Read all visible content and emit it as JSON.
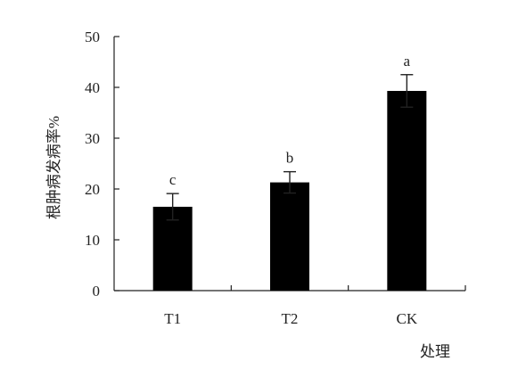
{
  "chart_data": {
    "type": "bar",
    "title": "",
    "xlabel": "处理",
    "ylabel": "根肿病发病率%",
    "categories": [
      "T1",
      "T2",
      "CK"
    ],
    "series": [
      {
        "values": [
          16.5,
          21.3,
          39.3
        ],
        "error": [
          2.6,
          2.1,
          3.2
        ],
        "significance": [
          "c",
          "b",
          "a"
        ],
        "color": "#000000"
      }
    ],
    "ylim": [
      0,
      50
    ],
    "yticks": [
      0,
      10,
      20,
      30,
      40,
      50
    ],
    "grid": false,
    "legend": "none"
  }
}
